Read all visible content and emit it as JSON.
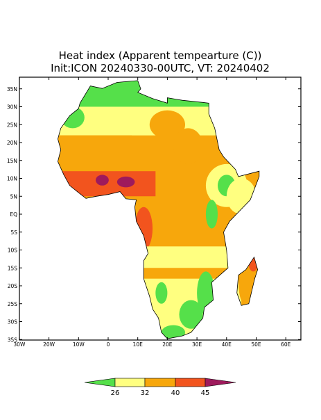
{
  "title": {
    "line1": "Heat index (Apparent tempearture (C))",
    "line2": "Init:ICON 20240330-00UTC, VT: 20240402"
  },
  "map": {
    "lat_labels": [
      "35N",
      "30N",
      "25N",
      "20N",
      "15N",
      "10N",
      "5N",
      "EQ",
      "5S",
      "10S",
      "15S",
      "20S",
      "25S",
      "30S",
      "35S"
    ],
    "lon_labels": [
      "30W",
      "20W",
      "10W",
      "0",
      "10E",
      "20E",
      "30E",
      "40E",
      "50E",
      "60E"
    ]
  },
  "colorbar": {
    "labels": [
      "26",
      "32",
      "40",
      "45"
    ]
  }
}
